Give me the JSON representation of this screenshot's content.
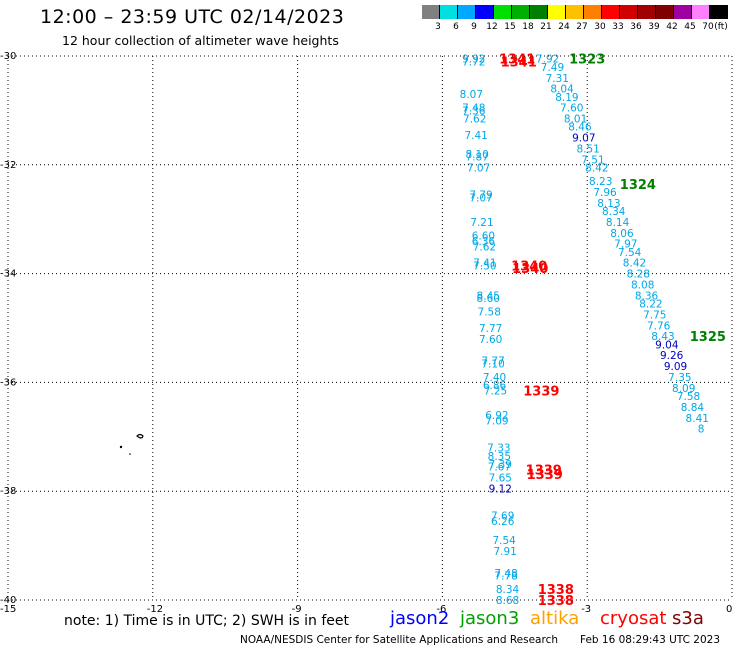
{
  "header": {
    "title": "12:00 – 23:59 UTC 02/14/2023",
    "subtitle": "12 hour collection of altimeter wave heights"
  },
  "color_scale": {
    "unit_label": "(ft)",
    "steps": [
      {
        "label": "3",
        "color": "#808080"
      },
      {
        "label": "6",
        "color": "#00e0e0"
      },
      {
        "label": "9",
        "color": "#00a8ff"
      },
      {
        "label": "12",
        "color": "#0000ff"
      },
      {
        "label": "15",
        "color": "#00e000"
      },
      {
        "label": "18",
        "color": "#00b000"
      },
      {
        "label": "21",
        "color": "#008000"
      },
      {
        "label": "24",
        "color": "#ffff00"
      },
      {
        "label": "27",
        "color": "#ffc000"
      },
      {
        "label": "30",
        "color": "#ff8000"
      },
      {
        "label": "33",
        "color": "#ff0000"
      },
      {
        "label": "36",
        "color": "#d00000"
      },
      {
        "label": "39",
        "color": "#a00000"
      },
      {
        "label": "42",
        "color": "#800000"
      },
      {
        "label": "45",
        "color": "#a000a0"
      },
      {
        "label": "70",
        "color": "#ff80ff"
      },
      {
        "label": "",
        "color": "#000000"
      }
    ]
  },
  "map": {
    "lat_labels": [
      "-30",
      "-32",
      "-34",
      "-36",
      "-38",
      "-40"
    ],
    "lon_labels": [
      "-15",
      "-12",
      "-9",
      "-6",
      "-3",
      "0"
    ]
  },
  "observations": [
    {
      "v": "9.92",
      "lat": -30.05,
      "lon": -5.35,
      "c": "#00a8e8"
    },
    {
      "v": "7.72",
      "lat": -30.1,
      "lon": -5.35,
      "c": "#00a8e8"
    },
    {
      "v": "8.07",
      "lat": -30.7,
      "lon": -5.4,
      "c": "#00a8e8"
    },
    {
      "v": "7.48",
      "lat": -30.95,
      "lon": -5.35,
      "c": "#00a8e8"
    },
    {
      "v": "7.36",
      "lat": -31.0,
      "lon": -5.35,
      "c": "#00a8e8"
    },
    {
      "v": "7.62",
      "lat": -31.15,
      "lon": -5.33,
      "c": "#00a8e8"
    },
    {
      "v": "7.41",
      "lat": -31.45,
      "lon": -5.3,
      "c": "#00a8e8"
    },
    {
      "v": "8.10",
      "lat": -31.8,
      "lon": -5.28,
      "c": "#00a8e8"
    },
    {
      "v": "7.87",
      "lat": -31.85,
      "lon": -5.28,
      "c": "#00a8e8"
    },
    {
      "v": "7.07",
      "lat": -32.05,
      "lon": -5.25,
      "c": "#00a8e8"
    },
    {
      "v": "7.79",
      "lat": -32.55,
      "lon": -5.2,
      "c": "#00a8e8"
    },
    {
      "v": "7.07",
      "lat": -32.6,
      "lon": -5.2,
      "c": "#00a8e8"
    },
    {
      "v": "7.21",
      "lat": -33.05,
      "lon": -5.18,
      "c": "#00a8e8"
    },
    {
      "v": "6.60",
      "lat": -33.3,
      "lon": -5.15,
      "c": "#00a8e8"
    },
    {
      "v": "6.36",
      "lat": -33.4,
      "lon": -5.15,
      "c": "#00a8e8"
    },
    {
      "v": "7.62",
      "lat": -33.5,
      "lon": -5.13,
      "c": "#00a8e8"
    },
    {
      "v": "7.41",
      "lat": -33.8,
      "lon": -5.12,
      "c": "#00a8e8"
    },
    {
      "v": "7.50",
      "lat": -33.85,
      "lon": -5.12,
      "c": "#00a8e8"
    },
    {
      "v": "8.45",
      "lat": -34.4,
      "lon": -5.05,
      "c": "#00a8e8"
    },
    {
      "v": "8.60",
      "lat": -34.45,
      "lon": -5.05,
      "c": "#00a8e8"
    },
    {
      "v": "7.58",
      "lat": -34.7,
      "lon": -5.03,
      "c": "#00a8e8"
    },
    {
      "v": "7.77",
      "lat": -35.0,
      "lon": -5.0,
      "c": "#00a8e8"
    },
    {
      "v": "7.60",
      "lat": -35.2,
      "lon": -5.0,
      "c": "#00a8e8"
    },
    {
      "v": "7.77",
      "lat": -35.6,
      "lon": -4.95,
      "c": "#00a8e8"
    },
    {
      "v": "7.10",
      "lat": -35.65,
      "lon": -4.95,
      "c": "#00a8e8"
    },
    {
      "v": "7.40",
      "lat": -35.9,
      "lon": -4.92,
      "c": "#00a8e8"
    },
    {
      "v": "6.86",
      "lat": -36.05,
      "lon": -4.92,
      "c": "#00a8e8"
    },
    {
      "v": "7.25",
      "lat": -36.15,
      "lon": -4.9,
      "c": "#00a8e8"
    },
    {
      "v": "6.92",
      "lat": -36.6,
      "lon": -4.87,
      "c": "#00a8e8"
    },
    {
      "v": "7.09",
      "lat": -36.7,
      "lon": -4.87,
      "c": "#00a8e8"
    },
    {
      "v": "7.33",
      "lat": -37.2,
      "lon": -4.83,
      "c": "#00a8e8"
    },
    {
      "v": "8.35",
      "lat": -37.35,
      "lon": -4.82,
      "c": "#00a8e8"
    },
    {
      "v": "7.39",
      "lat": -37.5,
      "lon": -4.8,
      "c": "#00a8e8"
    },
    {
      "v": "7.67",
      "lat": -37.55,
      "lon": -4.82,
      "c": "#00a8e8"
    },
    {
      "v": "7.65",
      "lat": -37.75,
      "lon": -4.8,
      "c": "#00a8e8"
    },
    {
      "v": "9.12",
      "lat": -37.95,
      "lon": -4.8,
      "c": "#0000c0"
    },
    {
      "v": "7.69",
      "lat": -38.45,
      "lon": -4.75,
      "c": "#00a8e8"
    },
    {
      "v": "6.26",
      "lat": -38.55,
      "lon": -4.75,
      "c": "#00a8e8"
    },
    {
      "v": "7.54",
      "lat": -38.9,
      "lon": -4.72,
      "c": "#00a8e8"
    },
    {
      "v": "7.91",
      "lat": -39.1,
      "lon": -4.7,
      "c": "#00a8e8"
    },
    {
      "v": "7.48",
      "lat": -39.5,
      "lon": -4.68,
      "c": "#00a8e8"
    },
    {
      "v": "7.78",
      "lat": -39.55,
      "lon": -4.68,
      "c": "#00a8e8"
    },
    {
      "v": "8.34",
      "lat": -39.8,
      "lon": -4.65,
      "c": "#00a8e8"
    },
    {
      "v": "8.68",
      "lat": -40.0,
      "lon": -4.65,
      "c": "#00a8e8"
    },
    {
      "v": "7.92",
      "lat": -30.05,
      "lon": -3.82,
      "c": "#00a8e8"
    },
    {
      "v": "7.49",
      "lat": -30.2,
      "lon": -3.72,
      "c": "#00a8e8"
    },
    {
      "v": "7.31",
      "lat": -30.4,
      "lon": -3.62,
      "c": "#00a8e8"
    },
    {
      "v": "8.04",
      "lat": -30.6,
      "lon": -3.52,
      "c": "#00a8e8"
    },
    {
      "v": "8.19",
      "lat": -30.75,
      "lon": -3.42,
      "c": "#00a8e8"
    },
    {
      "v": "7.60",
      "lat": -30.95,
      "lon": -3.32,
      "c": "#00a8e8"
    },
    {
      "v": "8.01",
      "lat": -31.15,
      "lon": -3.24,
      "c": "#00a8e8"
    },
    {
      "v": "8.46",
      "lat": -31.3,
      "lon": -3.15,
      "c": "#00a8e8"
    },
    {
      "v": "9.07",
      "lat": -31.5,
      "lon": -3.07,
      "c": "#0000c0"
    },
    {
      "v": "8.51",
      "lat": -31.7,
      "lon": -2.98,
      "c": "#00a8e8"
    },
    {
      "v": "7.51",
      "lat": -31.9,
      "lon": -2.88,
      "c": "#00a8e8"
    },
    {
      "v": "8.42",
      "lat": -32.05,
      "lon": -2.8,
      "c": "#00a8e8"
    },
    {
      "v": "8.23",
      "lat": -32.3,
      "lon": -2.72,
      "c": "#00a8e8"
    },
    {
      "v": "7.96",
      "lat": -32.5,
      "lon": -2.63,
      "c": "#00a8e8"
    },
    {
      "v": "8.13",
      "lat": -32.7,
      "lon": -2.55,
      "c": "#00a8e8"
    },
    {
      "v": "8.34",
      "lat": -32.85,
      "lon": -2.45,
      "c": "#00a8e8"
    },
    {
      "v": "8.14",
      "lat": -33.05,
      "lon": -2.37,
      "c": "#00a8e8"
    },
    {
      "v": "8.06",
      "lat": -33.25,
      "lon": -2.28,
      "c": "#00a8e8"
    },
    {
      "v": "7.97",
      "lat": -33.45,
      "lon": -2.2,
      "c": "#00a8e8"
    },
    {
      "v": "7.54",
      "lat": -33.6,
      "lon": -2.12,
      "c": "#00a8e8"
    },
    {
      "v": "8.42",
      "lat": -33.8,
      "lon": -2.02,
      "c": "#00a8e8"
    },
    {
      "v": "8.28",
      "lat": -34.0,
      "lon": -1.94,
      "c": "#00a8e8"
    },
    {
      "v": "8.08",
      "lat": -34.2,
      "lon": -1.85,
      "c": "#00a8e8"
    },
    {
      "v": "8.36",
      "lat": -34.4,
      "lon": -1.77,
      "c": "#00a8e8"
    },
    {
      "v": "8.22",
      "lat": -34.55,
      "lon": -1.68,
      "c": "#00a8e8"
    },
    {
      "v": "7.75",
      "lat": -34.75,
      "lon": -1.6,
      "c": "#00a8e8"
    },
    {
      "v": "7.76",
      "lat": -34.95,
      "lon": -1.52,
      "c": "#00a8e8"
    },
    {
      "v": "8.43",
      "lat": -35.15,
      "lon": -1.43,
      "c": "#00a8e8"
    },
    {
      "v": "9.04",
      "lat": -35.3,
      "lon": -1.35,
      "c": "#0000c0"
    },
    {
      "v": "9.26",
      "lat": -35.5,
      "lon": -1.25,
      "c": "#0000c0"
    },
    {
      "v": "9.09",
      "lat": -35.7,
      "lon": -1.17,
      "c": "#0000c0"
    },
    {
      "v": "7.35",
      "lat": -35.9,
      "lon": -1.08,
      "c": "#00a8e8"
    },
    {
      "v": "8.09",
      "lat": -36.1,
      "lon": -1.0,
      "c": "#00a8e8"
    },
    {
      "v": "7.58",
      "lat": -36.25,
      "lon": -0.9,
      "c": "#00a8e8"
    },
    {
      "v": "8.84",
      "lat": -36.45,
      "lon": -0.82,
      "c": "#00a8e8"
    },
    {
      "v": "8.41",
      "lat": -36.65,
      "lon": -0.72,
      "c": "#00a8e8"
    },
    {
      "v": "8",
      "lat": -36.85,
      "lon": -0.64,
      "c": "#00a8e8"
    }
  ],
  "passes": [
    {
      "id": "1341",
      "lat": -30.05,
      "lon": -4.45,
      "c": "#ff0000"
    },
    {
      "id": "1341",
      "lat": -30.1,
      "lon": -4.42,
      "c": "#ff0000"
    },
    {
      "id": "1323",
      "lat": -30.05,
      "lon": -3.0,
      "c": "#008000"
    },
    {
      "id": "1324",
      "lat": -32.35,
      "lon": -1.95,
      "c": "#008000"
    },
    {
      "id": "1340",
      "lat": -33.85,
      "lon": -4.2,
      "c": "#ff0000"
    },
    {
      "id": "1340",
      "lat": -33.9,
      "lon": -4.18,
      "c": "#ff0000"
    },
    {
      "id": "1339",
      "lat": -36.15,
      "lon": -3.95,
      "c": "#ff0000"
    },
    {
      "id": "1339",
      "lat": -37.6,
      "lon": -3.9,
      "c": "#ff0000"
    },
    {
      "id": "1339",
      "lat": -37.68,
      "lon": -3.88,
      "c": "#ff0000"
    },
    {
      "id": "1338",
      "lat": -39.8,
      "lon": -3.65,
      "c": "#ff0000"
    },
    {
      "id": "1338",
      "lat": -40.0,
      "lon": -3.65,
      "c": "#ff0000"
    },
    {
      "id": "1325",
      "lat": -35.15,
      "lon": -0.5,
      "c": "#008000"
    }
  ],
  "footer": {
    "note": "note:  1) Time is in UTC; 2) SWH is in feet",
    "legend": [
      {
        "name": "jason2",
        "color": "#0000ff"
      },
      {
        "name": "jason3",
        "color": "#00a000"
      },
      {
        "name": "altika",
        "color": "#ffa000"
      },
      {
        "name": "cryosat",
        "color": "#ff0000"
      },
      {
        "name": "s3a",
        "color": "#800000"
      }
    ],
    "credit": "NOAA/NESDIS Center for Satellite Applications and Research",
    "timestamp": "Feb 16 08:29:43 UTC 2023"
  }
}
